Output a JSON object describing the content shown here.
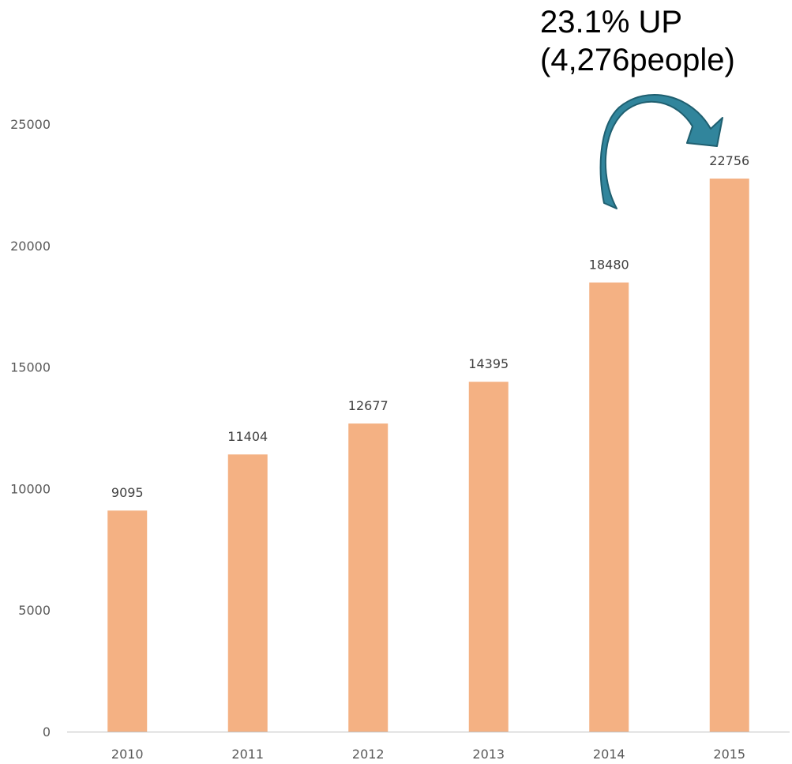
{
  "chart_data": {
    "type": "bar",
    "categories": [
      "2010",
      "2011",
      "2012",
      "2013",
      "2014",
      "2015"
    ],
    "values": [
      9095,
      11404,
      12677,
      14395,
      18480,
      22756
    ],
    "data_labels": [
      "9095",
      "11404",
      "12677",
      "14395",
      "18480",
      "22756"
    ],
    "title": "",
    "xlabel": "",
    "ylabel": "",
    "ylim": [
      0,
      25000
    ],
    "yticks": [
      0,
      5000,
      10000,
      15000,
      20000,
      25000
    ],
    "ytick_labels": [
      "0",
      "5000",
      "10000",
      "15000",
      "20000",
      "25000"
    ],
    "grid": false,
    "legend": "none",
    "bar_color": "#F4B183",
    "arrow_color": "#31859C",
    "annotation": {
      "line1": "23.1% UP",
      "line2": "(4,276people)",
      "from_category": "2014",
      "to_category": "2015"
    }
  }
}
